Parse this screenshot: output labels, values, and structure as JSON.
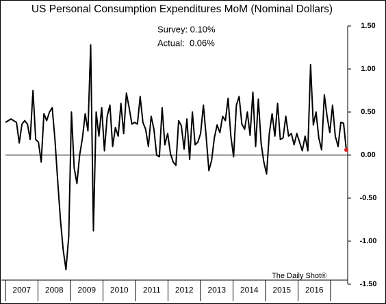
{
  "chart_data": {
    "type": "line",
    "title": "US Personal Consumption Expenditures MoM (Nominal Dollars)",
    "annotations": [
      "Survey: 0.10%",
      "Actual:  0.06%",
      "The Daily Shot®"
    ],
    "year_labels": [
      "2007",
      "2008",
      "2009",
      "2010",
      "2011",
      "2012",
      "2013",
      "2014",
      "2015",
      "2016"
    ],
    "series": [
      {
        "name": "PCE MoM",
        "color": "#000000",
        "last_point_color": "#e02020",
        "values": [
          0.38,
          0.4,
          0.42,
          0.4,
          0.38,
          0.14,
          0.36,
          0.4,
          0.36,
          0.18,
          0.75,
          0.18,
          0.15,
          -0.08,
          0.48,
          0.4,
          0.5,
          0.55,
          0.18,
          -0.3,
          -0.75,
          -1.1,
          -1.33,
          -0.95,
          0.5,
          -0.15,
          -0.33,
          0.0,
          0.2,
          0.48,
          0.28,
          1.28,
          -0.88,
          0.5,
          0.22,
          0.55,
          0.05,
          0.45,
          0.58,
          0.1,
          0.32,
          0.22,
          0.6,
          0.25,
          0.72,
          0.55,
          0.36,
          0.38,
          0.36,
          0.68,
          0.38,
          0.3,
          0.1,
          0.45,
          0.3,
          0.0,
          -0.02,
          0.55,
          0.12,
          0.25,
          0.02,
          -0.08,
          -0.12,
          0.4,
          0.34,
          0.07,
          0.42,
          -0.05,
          0.5,
          0.12,
          0.15,
          0.25,
          0.58,
          0.22,
          -0.18,
          -0.06,
          0.2,
          0.35,
          0.26,
          0.45,
          0.4,
          0.66,
          0.22,
          -0.02,
          0.58,
          0.68,
          0.36,
          0.3,
          0.5,
          0.23,
          0.73,
          0.1,
          0.65,
          0.14,
          -0.08,
          -0.22,
          0.25,
          0.48,
          0.22,
          0.6,
          0.18,
          0.2,
          0.45,
          0.22,
          0.25,
          0.12,
          0.25,
          0.15,
          0.05,
          0.22,
          0.05,
          1.05,
          0.35,
          0.5,
          0.2,
          0.06,
          0.7,
          0.45,
          0.26,
          0.58,
          0.22,
          0.1,
          0.38,
          0.37,
          0.06
        ]
      }
    ],
    "ylim": [
      -1.5,
      1.5
    ],
    "yticks": [
      {
        "value": 1.5,
        "label": "1.50"
      },
      {
        "value": 1,
        "label": "1.00"
      },
      {
        "value": 0.5,
        "label": "0.50"
      },
      {
        "value": 0,
        "label": "0.00"
      },
      {
        "value": -0.5,
        "label": "-0.50"
      },
      {
        "value": -1,
        "label": "-1.00"
      },
      {
        "value": -1.5,
        "label": "-1.50"
      }
    ],
    "zero_line": true
  }
}
